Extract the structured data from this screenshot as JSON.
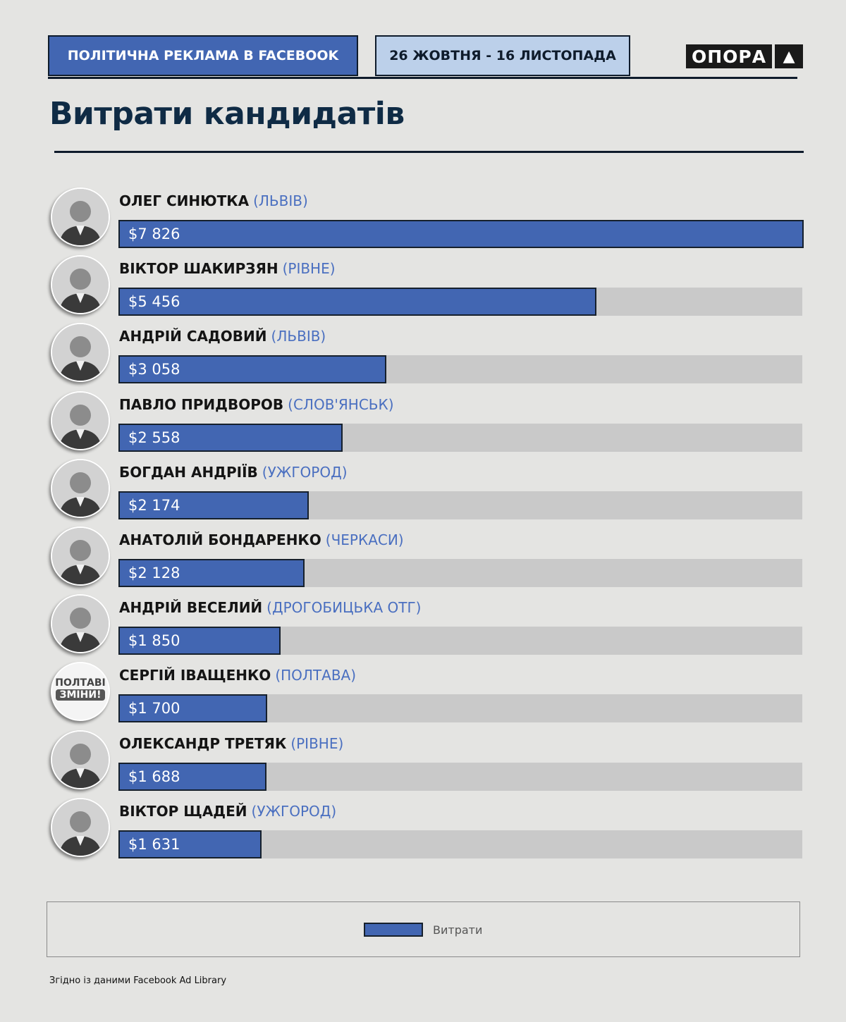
{
  "header": {
    "title": "ПОЛІТИЧНА РЕКЛАМА В FACEBOOK",
    "dates": "26 ЖОВТНЯ - 16 ЛИСТОПАДА",
    "logo_text": "ОПОРА"
  },
  "page_title": "Витрати кандидатів",
  "colors": {
    "bar": "#4266b2",
    "track": "#c9c9c9",
    "city": "#4a6fc0",
    "text": "#0e1b2b"
  },
  "chart_data": {
    "type": "bar",
    "orientation": "horizontal",
    "title": "Витрати кандидатів",
    "categories": [
      "ОЛЕГ СИНЮТКА",
      "ВІКТОР ШАКИРЗЯН",
      "АНДРІЙ САДОВИЙ",
      "ПАВЛО ПРИДВОРОВ",
      "БОГДАН АНДРІЇВ",
      "АНАТОЛІЙ БОНДАРЕНКО",
      "АНДРІЙ ВЕСЕЛИЙ",
      "СЕРГІЙ ІВАЩЕНКО",
      "ОЛЕКСАНДР ТРЕТЯК",
      "ВІКТОР ЩАДЕЙ"
    ],
    "cities": [
      "(ЛЬВІВ)",
      "(РІВНЕ)",
      "(ЛЬВІВ)",
      "(СЛОВ'ЯНСЬК)",
      "(УЖГОРОД)",
      "(ЧЕРКАСИ)",
      "(ДРОГОБИЦЬКА ОТГ)",
      "(ПОЛТАВА)",
      "(РІВНЕ)",
      "(УЖГОРОД)"
    ],
    "series": [
      {
        "name": "Витрати",
        "values": [
          7826,
          5456,
          3058,
          2558,
          2174,
          2128,
          1850,
          1700,
          1688,
          1631
        ],
        "labels": [
          "$7 826",
          "$5 456",
          "$3 058",
          "$2 558",
          "$2 174",
          "$2 128",
          "$1 850",
          "$1 700",
          "$1 688",
          "$1 631"
        ]
      }
    ],
    "xlim": [
      0,
      7826
    ],
    "grid": false,
    "legend_position": "bottom-center"
  },
  "avatar_icons": [
    "portrait-icon",
    "portrait-icon",
    "portrait-icon",
    "portrait-icon",
    "portrait-icon",
    "portrait-icon",
    "portrait-icon",
    "campaign-logo-icon",
    "portrait-icon",
    "portrait-icon"
  ],
  "campaign_logo_text": [
    "ПОЛТАВІ",
    "ЗМІНИ!"
  ],
  "legend": {
    "label": "Витрати"
  },
  "source": "Згідно із даними Facebook Ad Library"
}
